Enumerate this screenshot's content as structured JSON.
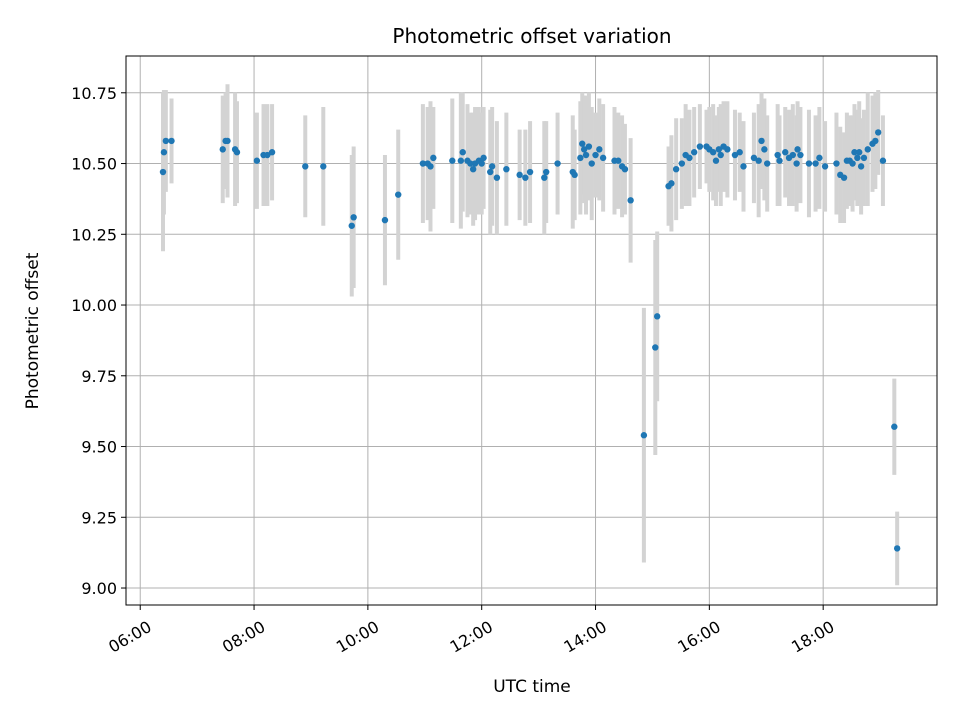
{
  "chart_data": {
    "type": "scatter",
    "title": "Photometric offset variation",
    "xlabel": "UTC time",
    "ylabel": "Photometric offset",
    "x_axis": "time",
    "xlim": [
      "05:45",
      "20:00"
    ],
    "ylim": [
      8.94,
      10.88
    ],
    "x_ticks": [
      "06:00",
      "08:00",
      "10:00",
      "12:00",
      "14:00",
      "16:00",
      "18:00"
    ],
    "y_ticks": [
      "9.00",
      "9.25",
      "9.50",
      "9.75",
      "10.00",
      "10.25",
      "10.50",
      "10.75"
    ],
    "grid": true,
    "colors": {
      "point": "#1f77b4",
      "errorbar": "#d3d3d3",
      "grid": "#b0b0b0"
    },
    "points": [
      {
        "t": "06:24",
        "y": 10.47,
        "err": 0.28
      },
      {
        "t": "06:25",
        "y": 10.54,
        "err": 0.22
      },
      {
        "t": "06:27",
        "y": 10.58,
        "err": 0.18
      },
      {
        "t": "06:33",
        "y": 10.58,
        "err": 0.15
      },
      {
        "t": "07:27",
        "y": 10.55,
        "err": 0.19
      },
      {
        "t": "07:30",
        "y": 10.58,
        "err": 0.17
      },
      {
        "t": "07:32",
        "y": 10.58,
        "err": 0.2
      },
      {
        "t": "07:40",
        "y": 10.55,
        "err": 0.2
      },
      {
        "t": "07:42",
        "y": 10.54,
        "err": 0.18
      },
      {
        "t": "08:03",
        "y": 10.51,
        "err": 0.17
      },
      {
        "t": "08:10",
        "y": 10.53,
        "err": 0.18
      },
      {
        "t": "08:14",
        "y": 10.53,
        "err": 0.18
      },
      {
        "t": "08:19",
        "y": 10.54,
        "err": 0.17
      },
      {
        "t": "08:54",
        "y": 10.49,
        "err": 0.18
      },
      {
        "t": "09:13",
        "y": 10.49,
        "err": 0.21
      },
      {
        "t": "09:43",
        "y": 10.28,
        "err": 0.25
      },
      {
        "t": "09:45",
        "y": 10.31,
        "err": 0.25
      },
      {
        "t": "10:18",
        "y": 10.3,
        "err": 0.23
      },
      {
        "t": "10:32",
        "y": 10.39,
        "err": 0.23
      },
      {
        "t": "10:58",
        "y": 10.5,
        "err": 0.21
      },
      {
        "t": "11:03",
        "y": 10.5,
        "err": 0.2
      },
      {
        "t": "11:06",
        "y": 10.49,
        "err": 0.23
      },
      {
        "t": "11:09",
        "y": 10.52,
        "err": 0.18
      },
      {
        "t": "11:29",
        "y": 10.51,
        "err": 0.22
      },
      {
        "t": "11:38",
        "y": 10.51,
        "err": 0.24
      },
      {
        "t": "11:40",
        "y": 10.54,
        "err": 0.21
      },
      {
        "t": "11:45",
        "y": 10.51,
        "err": 0.2
      },
      {
        "t": "11:48",
        "y": 10.5,
        "err": 0.18
      },
      {
        "t": "11:51",
        "y": 10.48,
        "err": 0.2
      },
      {
        "t": "11:53",
        "y": 10.5,
        "err": 0.2
      },
      {
        "t": "11:57",
        "y": 10.51,
        "err": 0.19
      },
      {
        "t": "12:00",
        "y": 10.5,
        "err": 0.18
      },
      {
        "t": "12:02",
        "y": 10.52,
        "err": 0.18
      },
      {
        "t": "12:09",
        "y": 10.47,
        "err": 0.22
      },
      {
        "t": "12:11",
        "y": 10.49,
        "err": 0.21
      },
      {
        "t": "12:16",
        "y": 10.45,
        "err": 0.2
      },
      {
        "t": "12:26",
        "y": 10.48,
        "err": 0.2
      },
      {
        "t": "12:40",
        "y": 10.46,
        "err": 0.16
      },
      {
        "t": "12:46",
        "y": 10.45,
        "err": 0.17
      },
      {
        "t": "12:51",
        "y": 10.47,
        "err": 0.18
      },
      {
        "t": "13:06",
        "y": 10.45,
        "err": 0.2
      },
      {
        "t": "13:08",
        "y": 10.47,
        "err": 0.18
      },
      {
        "t": "13:20",
        "y": 10.5,
        "err": 0.18
      },
      {
        "t": "13:36",
        "y": 10.47,
        "err": 0.2
      },
      {
        "t": "13:38",
        "y": 10.46,
        "err": 0.16
      },
      {
        "t": "13:44",
        "y": 10.52,
        "err": 0.2
      },
      {
        "t": "13:46",
        "y": 10.57,
        "err": 0.18
      },
      {
        "t": "13:48",
        "y": 10.55,
        "err": 0.19
      },
      {
        "t": "13:50",
        "y": 10.53,
        "err": 0.21
      },
      {
        "t": "13:53",
        "y": 10.56,
        "err": 0.19
      },
      {
        "t": "13:56",
        "y": 10.5,
        "err": 0.2
      },
      {
        "t": "14:00",
        "y": 10.53,
        "err": 0.15
      },
      {
        "t": "14:04",
        "y": 10.55,
        "err": 0.18
      },
      {
        "t": "14:08",
        "y": 10.52,
        "err": 0.19
      },
      {
        "t": "14:20",
        "y": 10.51,
        "err": 0.19
      },
      {
        "t": "14:24",
        "y": 10.51,
        "err": 0.17
      },
      {
        "t": "14:28",
        "y": 10.49,
        "err": 0.18
      },
      {
        "t": "14:31",
        "y": 10.48,
        "err": 0.16
      },
      {
        "t": "14:37",
        "y": 10.37,
        "err": 0.22
      },
      {
        "t": "14:51",
        "y": 9.54,
        "err": 0.45
      },
      {
        "t": "15:03",
        "y": 9.85,
        "err": 0.38
      },
      {
        "t": "15:05",
        "y": 9.96,
        "err": 0.3
      },
      {
        "t": "15:17",
        "y": 10.42,
        "err": 0.14
      },
      {
        "t": "15:20",
        "y": 10.43,
        "err": 0.17
      },
      {
        "t": "15:25",
        "y": 10.48,
        "err": 0.18
      },
      {
        "t": "15:31",
        "y": 10.5,
        "err": 0.16
      },
      {
        "t": "15:35",
        "y": 10.53,
        "err": 0.18
      },
      {
        "t": "15:39",
        "y": 10.52,
        "err": 0.17
      },
      {
        "t": "15:44",
        "y": 10.54,
        "err": 0.16
      },
      {
        "t": "15:50",
        "y": 10.56,
        "err": 0.15
      },
      {
        "t": "15:57",
        "y": 10.56,
        "err": 0.13
      },
      {
        "t": "16:00",
        "y": 10.55,
        "err": 0.15
      },
      {
        "t": "16:04",
        "y": 10.54,
        "err": 0.17
      },
      {
        "t": "16:07",
        "y": 10.51,
        "err": 0.16
      },
      {
        "t": "16:10",
        "y": 10.55,
        "err": 0.15
      },
      {
        "t": "16:12",
        "y": 10.53,
        "err": 0.18
      },
      {
        "t": "16:15",
        "y": 10.56,
        "err": 0.16
      },
      {
        "t": "16:19",
        "y": 10.55,
        "err": 0.17
      },
      {
        "t": "16:27",
        "y": 10.53,
        "err": 0.16
      },
      {
        "t": "16:32",
        "y": 10.54,
        "err": 0.14
      },
      {
        "t": "16:36",
        "y": 10.49,
        "err": 0.16
      },
      {
        "t": "16:47",
        "y": 10.52,
        "err": 0.16
      },
      {
        "t": "16:52",
        "y": 10.51,
        "err": 0.2
      },
      {
        "t": "16:55",
        "y": 10.58,
        "err": 0.17
      },
      {
        "t": "16:58",
        "y": 10.55,
        "err": 0.18
      },
      {
        "t": "17:01",
        "y": 10.5,
        "err": 0.17
      },
      {
        "t": "17:12",
        "y": 10.53,
        "err": 0.18
      },
      {
        "t": "17:14",
        "y": 10.51,
        "err": 0.16
      },
      {
        "t": "17:20",
        "y": 10.54,
        "err": 0.16
      },
      {
        "t": "17:24",
        "y": 10.52,
        "err": 0.17
      },
      {
        "t": "17:28",
        "y": 10.53,
        "err": 0.18
      },
      {
        "t": "17:32",
        "y": 10.5,
        "err": 0.17
      },
      {
        "t": "17:33",
        "y": 10.55,
        "err": 0.17
      },
      {
        "t": "17:36",
        "y": 10.53,
        "err": 0.17
      },
      {
        "t": "17:45",
        "y": 10.5,
        "err": 0.19
      },
      {
        "t": "17:52",
        "y": 10.5,
        "err": 0.17
      },
      {
        "t": "17:56",
        "y": 10.52,
        "err": 0.18
      },
      {
        "t": "18:02",
        "y": 10.49,
        "err": 0.16
      },
      {
        "t": "18:14",
        "y": 10.5,
        "err": 0.18
      },
      {
        "t": "18:18",
        "y": 10.46,
        "err": 0.17
      },
      {
        "t": "18:22",
        "y": 10.45,
        "err": 0.16
      },
      {
        "t": "18:25",
        "y": 10.51,
        "err": 0.17
      },
      {
        "t": "18:28",
        "y": 10.51,
        "err": 0.16
      },
      {
        "t": "18:31",
        "y": 10.5,
        "err": 0.17
      },
      {
        "t": "18:33",
        "y": 10.54,
        "err": 0.17
      },
      {
        "t": "18:36",
        "y": 10.52,
        "err": 0.17
      },
      {
        "t": "18:38",
        "y": 10.54,
        "err": 0.18
      },
      {
        "t": "18:40",
        "y": 10.49,
        "err": 0.17
      },
      {
        "t": "18:43",
        "y": 10.52,
        "err": 0.17
      },
      {
        "t": "18:47",
        "y": 10.55,
        "err": 0.2
      },
      {
        "t": "18:52",
        "y": 10.57,
        "err": 0.17
      },
      {
        "t": "18:55",
        "y": 10.58,
        "err": 0.17
      },
      {
        "t": "18:58",
        "y": 10.61,
        "err": 0.15
      },
      {
        "t": "19:03",
        "y": 10.51,
        "err": 0.16
      },
      {
        "t": "19:15",
        "y": 9.57,
        "err": 0.17
      },
      {
        "t": "19:18",
        "y": 9.14,
        "err": 0.13
      }
    ]
  }
}
